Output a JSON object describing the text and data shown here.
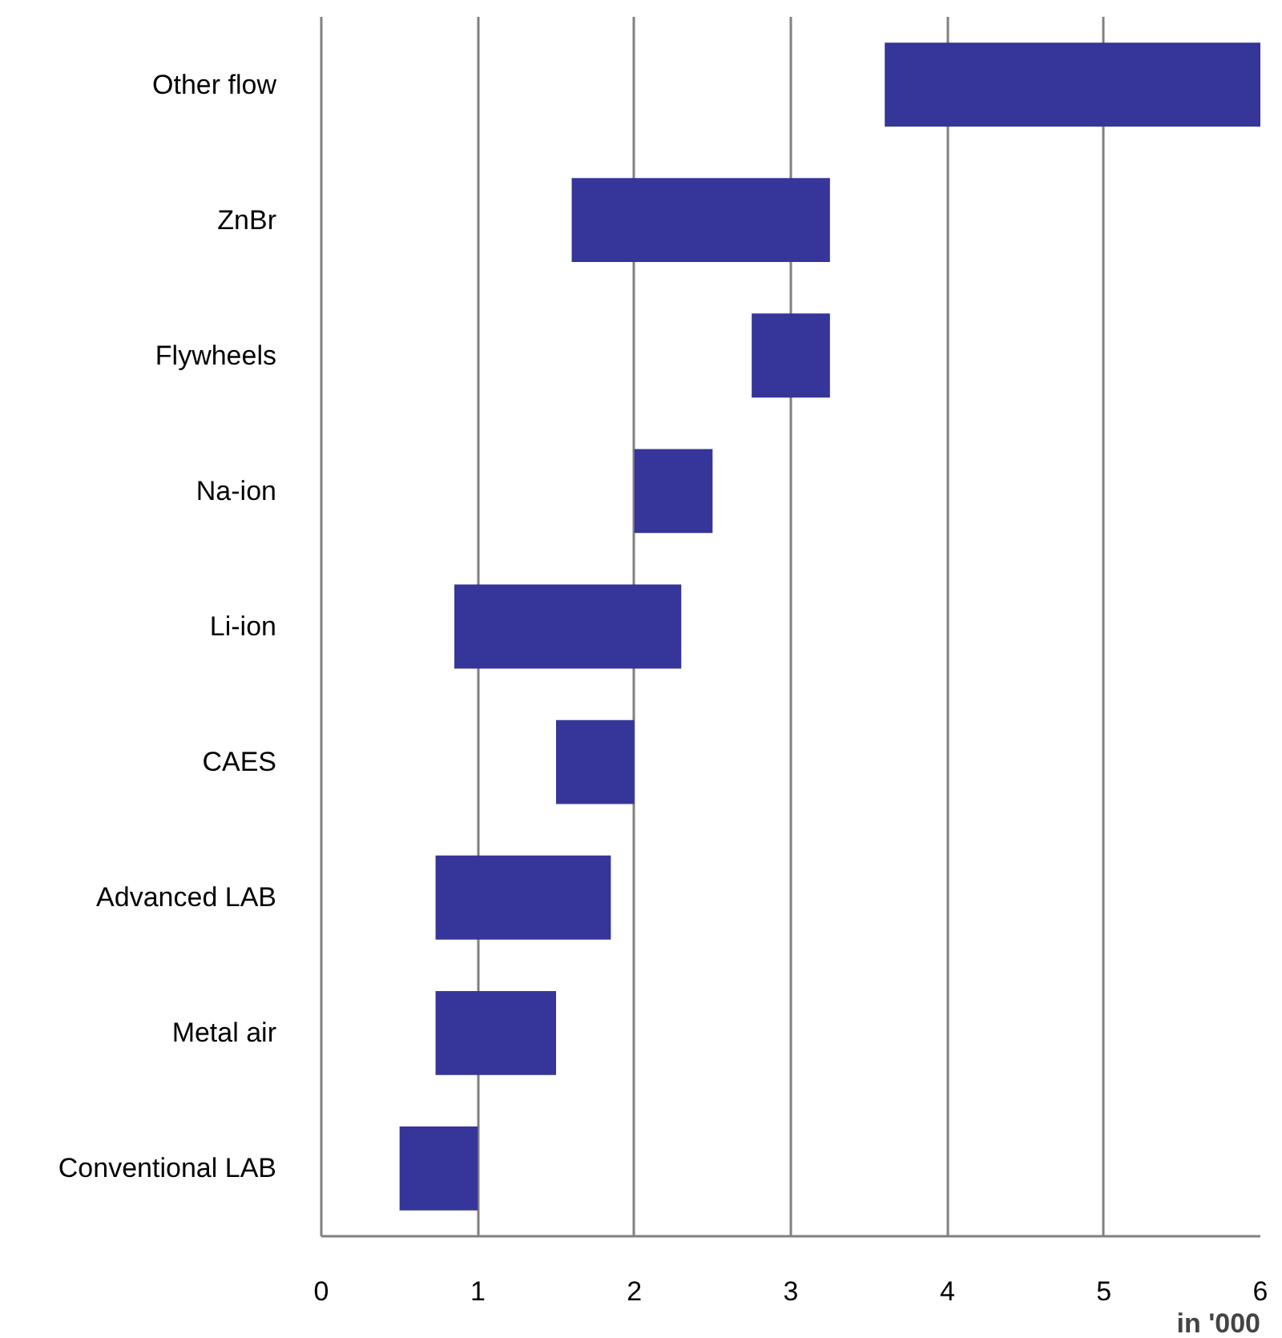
{
  "chart_data": {
    "type": "bar",
    "orientation": "horizontal",
    "categories": [
      "Other flow",
      "ZnBr",
      "Flywheels",
      "Na-ion",
      "Li-ion",
      "CAES",
      "Advanced LAB",
      "Metal air",
      "Conventional LAB"
    ],
    "base": [
      3.6,
      1.6,
      2.75,
      2.0,
      0.85,
      1.5,
      0.73,
      0.73,
      0.5
    ],
    "values": [
      2.4,
      1.65,
      0.5,
      0.5,
      1.45,
      0.5,
      1.12,
      0.77,
      0.5
    ],
    "color": "#35359a",
    "xlabel": "in '000",
    "xlim": [
      0,
      6
    ],
    "xticks": [
      0,
      1,
      2,
      3,
      4,
      5,
      6
    ],
    "grid": "x"
  }
}
